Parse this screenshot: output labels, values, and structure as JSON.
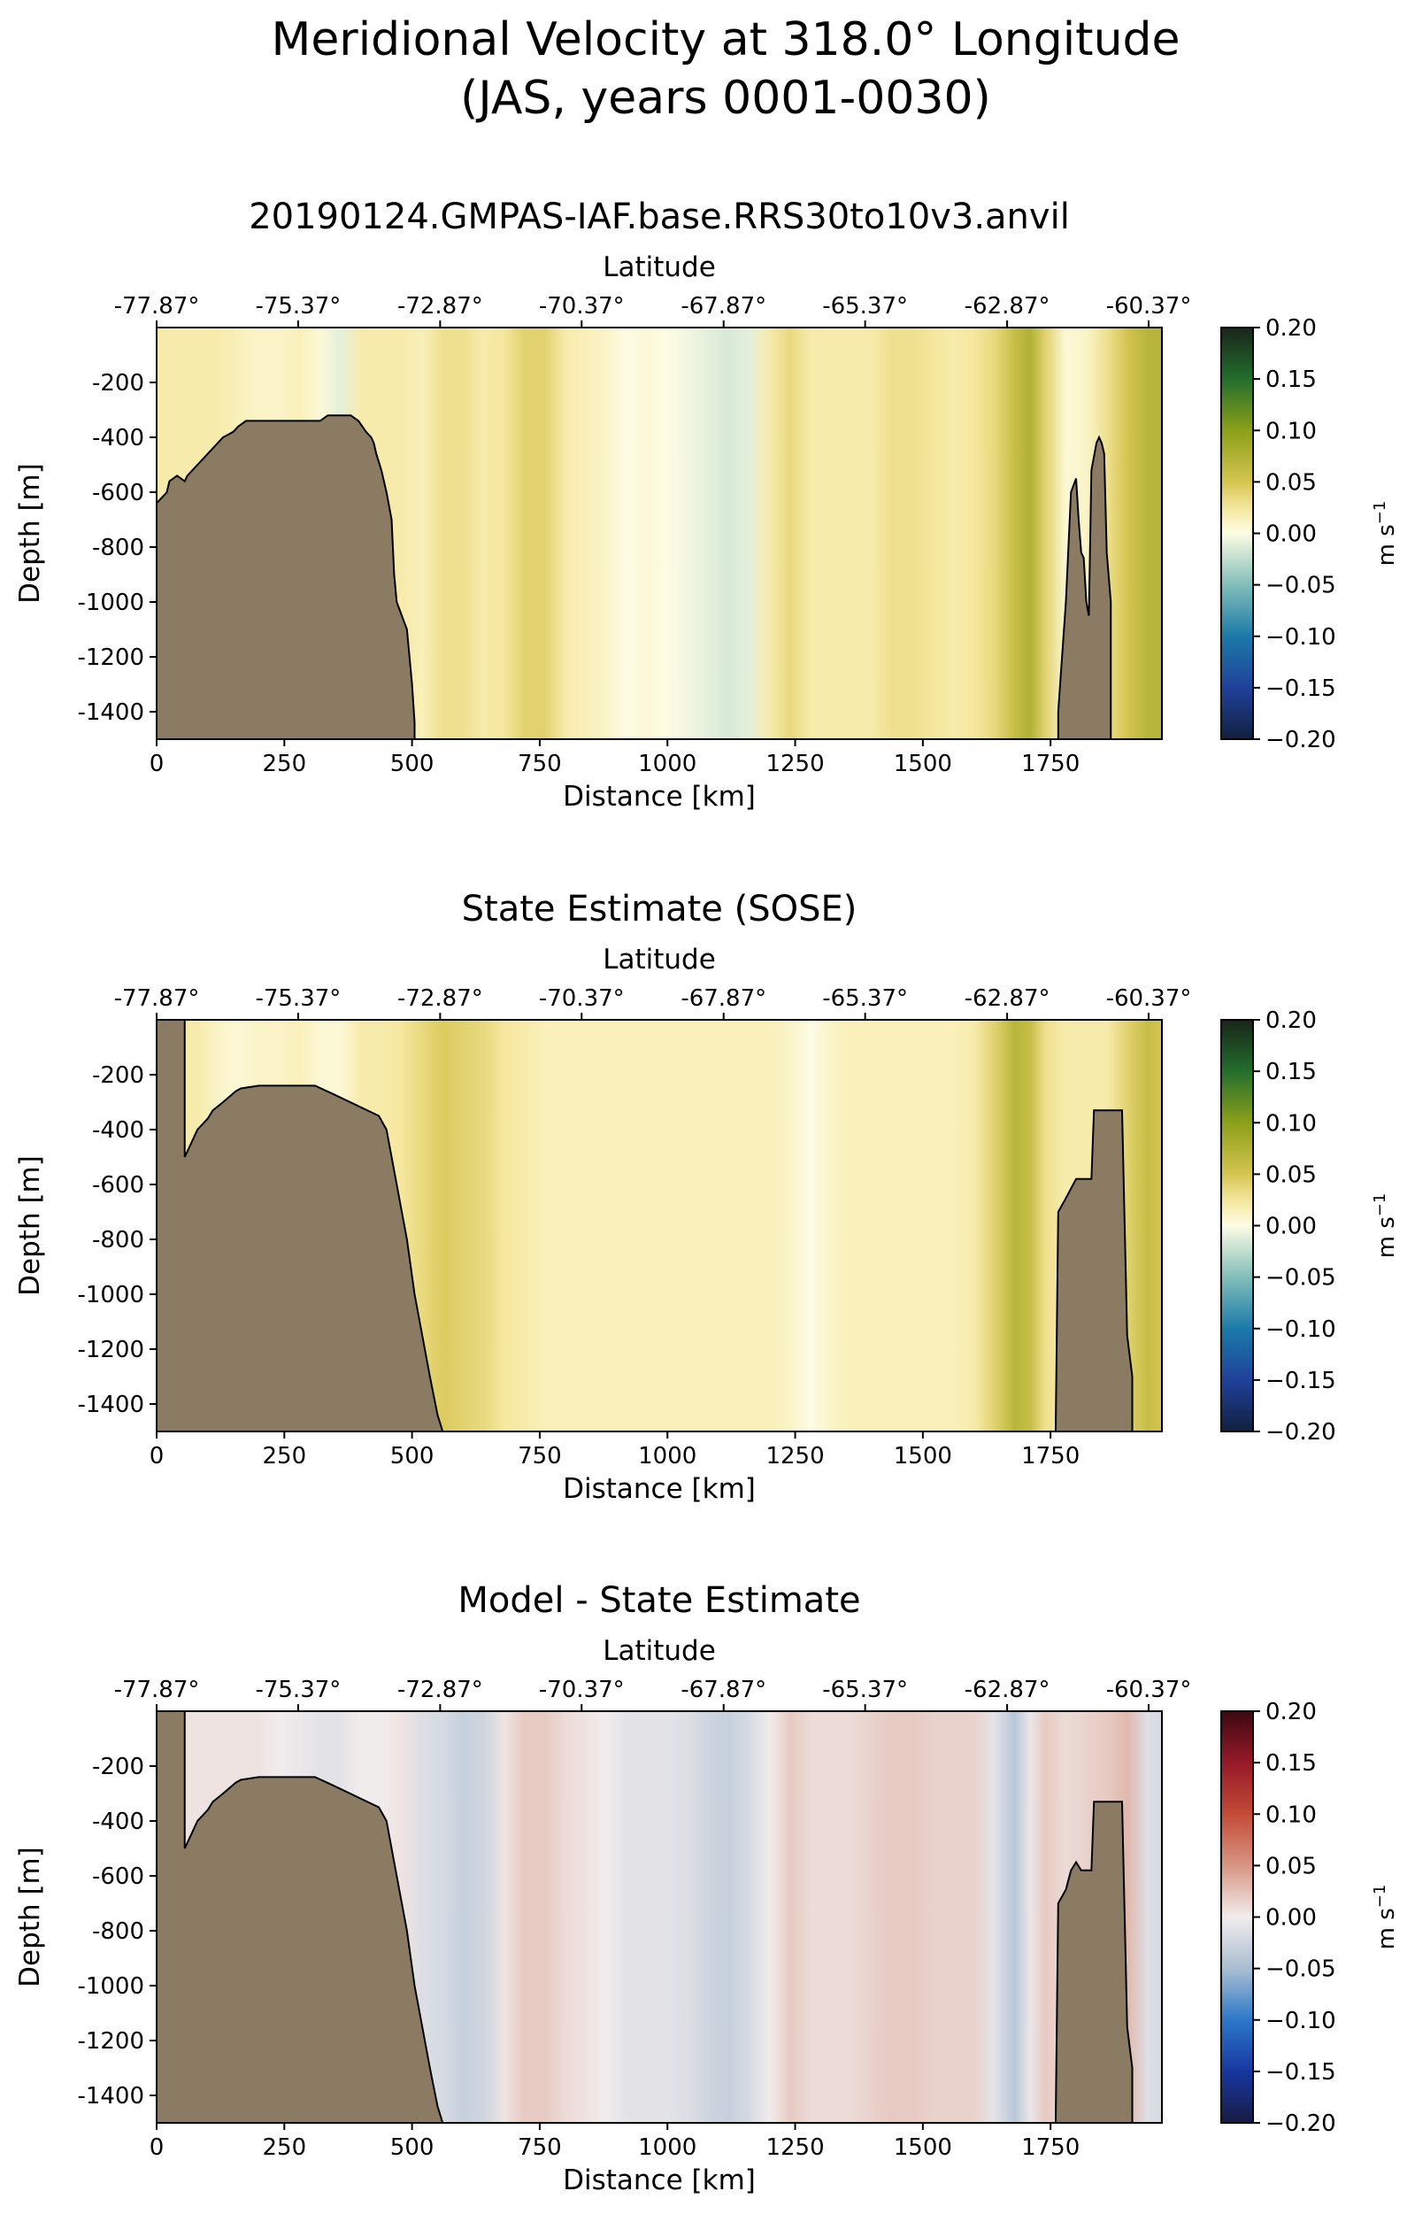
{
  "figure": {
    "title_line1": "Meridional Velocity at 318.0° Longitude",
    "title_line2": "(JAS, years 0001-0030)"
  },
  "chart_data": [
    {
      "type": "heatmap",
      "title": "20190124.GMPAS-IAF.base.RRS30to10v3.anvil",
      "xlabel": "Distance [km]",
      "ylabel": "Depth [m]",
      "top_xlabel": "Latitude",
      "xlim": [
        0,
        1968
      ],
      "ylim": [
        -1500,
        0
      ],
      "xticks": [
        0,
        250,
        500,
        750,
        1000,
        1250,
        1500,
        1750
      ],
      "xtick_labels": [
        "0",
        "250",
        "500",
        "750",
        "1000",
        "1250",
        "1500",
        "1750"
      ],
      "yticks": [
        -200,
        -400,
        -600,
        -800,
        -1000,
        -1200,
        -1400
      ],
      "ytick_labels": [
        "-200",
        "-400",
        "-600",
        "-800",
        "-1000",
        "-1200",
        "-1400"
      ],
      "top_ticks_km": [
        0,
        277,
        555,
        832,
        1110,
        1387,
        1665,
        1942
      ],
      "top_tick_labels": [
        "-77.87°",
        "-75.37°",
        "-72.87°",
        "-70.37°",
        "-67.87°",
        "-65.37°",
        "-62.87°",
        "-60.37°"
      ],
      "colorbar": {
        "colormap": "yellow-green (cmocean delta, positive half)",
        "vmin": -0.2,
        "vmax": 0.2,
        "ticks": [
          0.2,
          0.15,
          0.1,
          0.05,
          0.0,
          -0.05,
          -0.1,
          -0.15,
          -0.2
        ],
        "tick_labels": [
          "0.20",
          "0.15",
          "0.10",
          "0.05",
          "0.00",
          "−0.05",
          "−0.10",
          "−0.15",
          "−0.20"
        ],
        "label": "m s",
        "label_sup": "−1"
      },
      "columns": {
        "x_km": [
          0,
          40,
          80,
          120,
          160,
          200,
          240,
          280,
          320,
          360,
          400,
          440,
          480,
          520,
          560,
          600,
          640,
          680,
          720,
          760,
          800,
          840,
          880,
          920,
          960,
          1000,
          1040,
          1080,
          1120,
          1160,
          1200,
          1240,
          1280,
          1320,
          1360,
          1400,
          1440,
          1480,
          1520,
          1560,
          1600,
          1640,
          1680,
          1710,
          1740,
          1780,
          1820,
          1860,
          1900,
          1940,
          1968
        ],
        "velocity_m_s": [
          0.02,
          0.02,
          0.02,
          0.02,
          0.015,
          0.01,
          0.01,
          0.015,
          0.005,
          -0.01,
          0.02,
          0.02,
          0.02,
          0.015,
          0.03,
          0.03,
          0.02,
          0.025,
          0.04,
          0.04,
          0.02,
          0.015,
          0.01,
          0.0,
          0.005,
          0.0,
          -0.005,
          -0.01,
          -0.015,
          -0.01,
          0.02,
          0.035,
          0.02,
          0.02,
          0.02,
          0.02,
          0.03,
          0.03,
          0.025,
          0.02,
          0.025,
          0.035,
          0.06,
          0.075,
          0.04,
          0.005,
          0.01,
          0.03,
          0.05,
          0.07,
          0.07
        ]
      },
      "bathymetry": {
        "x_km": [
          0,
          20,
          25,
          40,
          55,
          60,
          70,
          80,
          90,
          100,
          110,
          120,
          130,
          150,
          160,
          175,
          195,
          210,
          320,
          335,
          380,
          395,
          410,
          420,
          425,
          430,
          440,
          450,
          460,
          465,
          470,
          490,
          500,
          505
        ],
        "depth_m": [
          -640,
          -600,
          -560,
          -540,
          -560,
          -540,
          -520,
          -500,
          -480,
          -460,
          -440,
          -420,
          -400,
          -380,
          -360,
          -340,
          -340,
          -340,
          -340,
          -320,
          -320,
          -340,
          -380,
          -400,
          -420,
          -460,
          -520,
          -600,
          -700,
          -900,
          -1000,
          -1100,
          -1300,
          -1440
        ],
        "x2_km": [
          1765,
          1780,
          1790,
          1800,
          1805,
          1810,
          1815,
          1820,
          1825,
          1830,
          1840,
          1845,
          1850,
          1855,
          1860,
          1868
        ],
        "depth2_m": [
          -1400,
          -1000,
          -600,
          -550,
          -700,
          -820,
          -840,
          -1000,
          -1050,
          -520,
          -420,
          -400,
          -420,
          -460,
          -820,
          -1000
        ]
      }
    },
    {
      "type": "heatmap",
      "title": "State Estimate (SOSE)",
      "xlabel": "Distance [km]",
      "ylabel": "Depth [m]",
      "top_xlabel": "Latitude",
      "xlim": [
        0,
        1968
      ],
      "ylim": [
        -1500,
        0
      ],
      "xticks": [
        0,
        250,
        500,
        750,
        1000,
        1250,
        1500,
        1750
      ],
      "xtick_labels": [
        "0",
        "250",
        "500",
        "750",
        "1000",
        "1250",
        "1500",
        "1750"
      ],
      "yticks": [
        -200,
        -400,
        -600,
        -800,
        -1000,
        -1200,
        -1400
      ],
      "ytick_labels": [
        "-200",
        "-400",
        "-600",
        "-800",
        "-1000",
        "-1200",
        "-1400"
      ],
      "top_ticks_km": [
        0,
        277,
        555,
        832,
        1110,
        1387,
        1665,
        1942
      ],
      "top_tick_labels": [
        "-77.87°",
        "-75.37°",
        "-72.87°",
        "-70.37°",
        "-67.87°",
        "-65.37°",
        "-62.87°",
        "-60.37°"
      ],
      "colorbar": {
        "colormap": "yellow-green (cmocean delta, positive half)",
        "vmin": -0.2,
        "vmax": 0.2,
        "ticks": [
          0.2,
          0.15,
          0.1,
          0.05,
          0.0,
          -0.05,
          -0.1,
          -0.15,
          -0.2
        ],
        "tick_labels": [
          "0.20",
          "0.15",
          "0.10",
          "0.05",
          "0.00",
          "−0.05",
          "−0.10",
          "−0.15",
          "−0.20"
        ],
        "label": "m s",
        "label_sup": "−1"
      },
      "columns": {
        "x_km": [
          0,
          40,
          80,
          120,
          160,
          200,
          240,
          280,
          320,
          360,
          400,
          440,
          480,
          520,
          560,
          600,
          640,
          680,
          720,
          760,
          800,
          840,
          880,
          920,
          960,
          1000,
          1040,
          1080,
          1120,
          1160,
          1200,
          1240,
          1280,
          1320,
          1360,
          1400,
          1440,
          1480,
          1520,
          1560,
          1600,
          1640,
          1680,
          1710,
          1740,
          1780,
          1820,
          1860,
          1900,
          1940,
          1968
        ],
        "velocity_m_s": [
          0.02,
          0.02,
          0.02,
          0.01,
          0.005,
          0.01,
          0.01,
          0.015,
          0.005,
          0.005,
          0.02,
          0.02,
          0.025,
          0.035,
          0.045,
          0.04,
          0.035,
          0.025,
          0.02,
          0.015,
          0.015,
          0.015,
          0.015,
          0.015,
          0.015,
          0.015,
          0.015,
          0.015,
          0.015,
          0.015,
          0.015,
          0.01,
          0.0,
          0.01,
          0.015,
          0.015,
          0.015,
          0.015,
          0.015,
          0.015,
          0.02,
          0.04,
          0.07,
          0.06,
          0.03,
          0.02,
          0.02,
          0.02,
          0.04,
          0.06,
          0.05
        ]
      },
      "bathymetry": {
        "x_km": [
          0,
          55,
          55,
          70,
          80,
          100,
          110,
          130,
          155,
          165,
          200,
          310,
          345,
          435,
          450,
          460,
          470,
          480,
          490,
          505,
          515,
          525,
          535,
          550,
          560
        ],
        "depth_m": [
          0,
          0,
          -500,
          -440,
          -400,
          -360,
          -330,
          -300,
          -260,
          -250,
          -240,
          -240,
          -270,
          -350,
          -400,
          -500,
          -600,
          -700,
          -800,
          -1000,
          -1100,
          -1200,
          -1300,
          -1440,
          -1500
        ],
        "x2_km": [
          1760,
          1765,
          1780,
          1800,
          1830,
          1835,
          1890,
          1900,
          1910
        ],
        "depth2_m": [
          -1500,
          -700,
          -650,
          -580,
          -580,
          -330,
          -330,
          -1150,
          -1300
        ]
      }
    },
    {
      "type": "heatmap",
      "title": "Model - State Estimate",
      "xlabel": "Distance [km]",
      "ylabel": "Depth [m]",
      "top_xlabel": "Latitude",
      "xlim": [
        0,
        1968
      ],
      "ylim": [
        -1500,
        0
      ],
      "xticks": [
        0,
        250,
        500,
        750,
        1000,
        1250,
        1500,
        1750
      ],
      "xtick_labels": [
        "0",
        "250",
        "500",
        "750",
        "1000",
        "1250",
        "1500",
        "1750"
      ],
      "yticks": [
        -200,
        -400,
        -600,
        -800,
        -1000,
        -1200,
        -1400
      ],
      "ytick_labels": [
        "-200",
        "-400",
        "-600",
        "-800",
        "-1000",
        "-1200",
        "-1400"
      ],
      "top_ticks_km": [
        0,
        277,
        555,
        832,
        1110,
        1387,
        1665,
        1942
      ],
      "top_tick_labels": [
        "-77.87°",
        "-75.37°",
        "-72.87°",
        "-70.37°",
        "-67.87°",
        "-65.37°",
        "-62.87°",
        "-60.37°"
      ],
      "colorbar": {
        "colormap": "red-blue (cmocean balance)",
        "vmin": -0.2,
        "vmax": 0.2,
        "ticks": [
          0.2,
          0.15,
          0.1,
          0.05,
          0.0,
          -0.05,
          -0.1,
          -0.15,
          -0.2
        ],
        "tick_labels": [
          "0.20",
          "0.15",
          "0.10",
          "0.05",
          "0.00",
          "−0.05",
          "−0.10",
          "−0.15",
          "−0.20"
        ],
        "label": "m s",
        "label_sup": "−1"
      },
      "columns": {
        "x_km": [
          0,
          40,
          80,
          120,
          160,
          200,
          240,
          280,
          320,
          360,
          400,
          440,
          480,
          520,
          560,
          600,
          640,
          680,
          720,
          760,
          800,
          840,
          880,
          920,
          960,
          1000,
          1040,
          1080,
          1120,
          1160,
          1200,
          1240,
          1280,
          1320,
          1360,
          1400,
          1440,
          1480,
          1520,
          1560,
          1600,
          1640,
          1680,
          1710,
          1740,
          1780,
          1820,
          1860,
          1900,
          1940,
          1968
        ],
        "velocity_m_s": [
          0.005,
          0.005,
          0.005,
          0.005,
          0.005,
          0.005,
          0.0,
          -0.005,
          -0.01,
          -0.01,
          0.0,
          0.0,
          0.005,
          -0.015,
          -0.02,
          -0.03,
          -0.025,
          0.005,
          0.02,
          0.02,
          0.01,
          0.005,
          0.0,
          -0.01,
          -0.01,
          -0.01,
          -0.015,
          -0.025,
          -0.03,
          -0.02,
          0.0,
          0.02,
          0.01,
          0.01,
          0.01,
          0.015,
          0.02,
          0.02,
          0.015,
          0.015,
          0.015,
          -0.01,
          -0.04,
          -0.005,
          0.02,
          0.01,
          0.015,
          0.02,
          0.03,
          -0.015,
          -0.02
        ]
      },
      "bathymetry": {
        "x_km": [
          0,
          55,
          55,
          70,
          80,
          100,
          110,
          130,
          155,
          165,
          200,
          310,
          345,
          435,
          450,
          460,
          470,
          480,
          490,
          505,
          515,
          525,
          535,
          550,
          560
        ],
        "depth_m": [
          0,
          0,
          -500,
          -440,
          -400,
          -360,
          -330,
          -300,
          -260,
          -250,
          -240,
          -240,
          -270,
          -350,
          -400,
          -500,
          -600,
          -700,
          -800,
          -1000,
          -1100,
          -1200,
          -1300,
          -1440,
          -1500
        ],
        "x2_km": [
          1760,
          1765,
          1780,
          1790,
          1800,
          1810,
          1830,
          1835,
          1890,
          1900,
          1910
        ],
        "depth2_m": [
          -1500,
          -700,
          -650,
          -580,
          -550,
          -580,
          -580,
          -330,
          -330,
          -1150,
          -1300
        ]
      }
    }
  ]
}
